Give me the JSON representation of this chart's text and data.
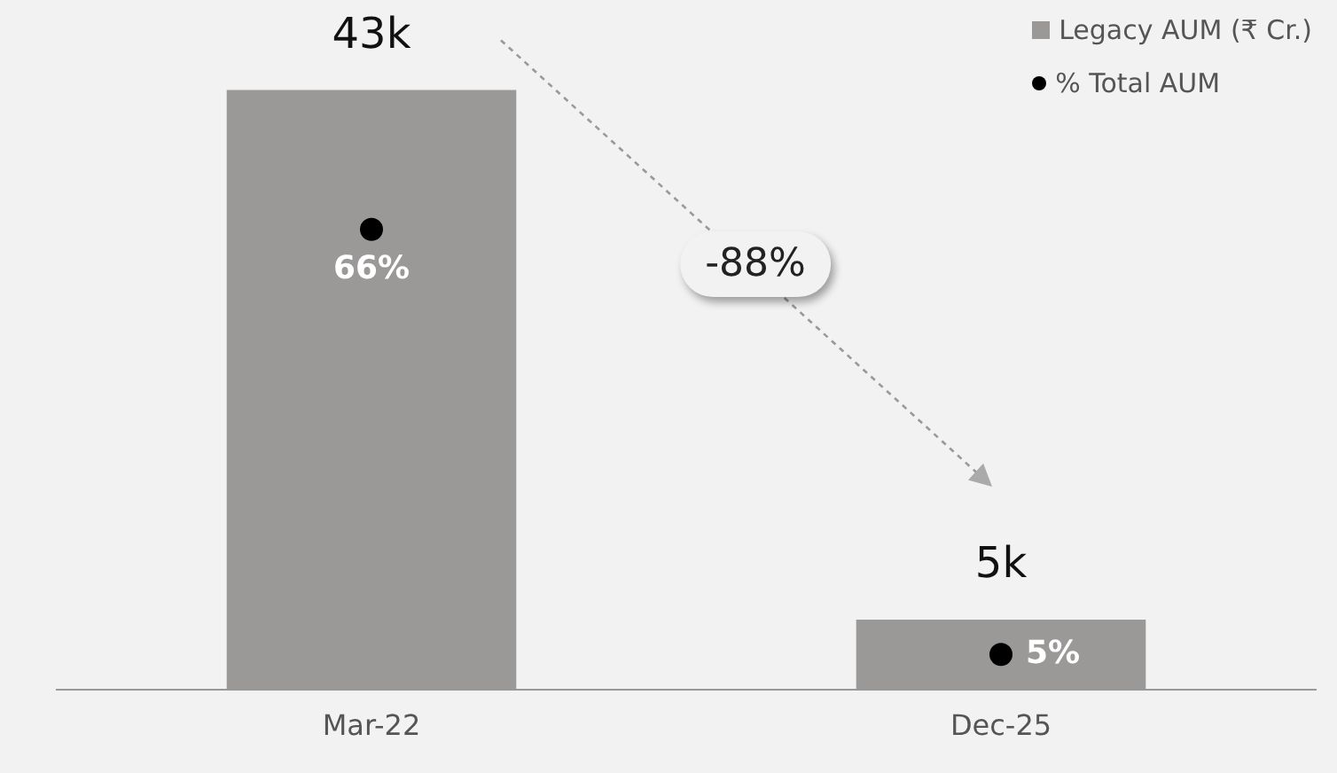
{
  "chart_data": {
    "type": "bar",
    "categories": [
      "Mar-22",
      "Dec-25"
    ],
    "series": [
      {
        "name": "Legacy AUM (₹ Cr.)",
        "color": "#9b9898",
        "values": [
          43000,
          5000
        ],
        "value_labels": [
          "43k",
          "5k"
        ]
      },
      {
        "name": "% Total AUM",
        "type": "scatter",
        "axis": "y2",
        "color": "#000000",
        "values": [
          66,
          5
        ],
        "value_labels": [
          "66%",
          "5%"
        ]
      }
    ],
    "tick_labels": "x",
    "grid": false,
    "legend": "top right",
    "marker": "circle",
    "annotations": [
      "-88%"
    ]
  }
}
